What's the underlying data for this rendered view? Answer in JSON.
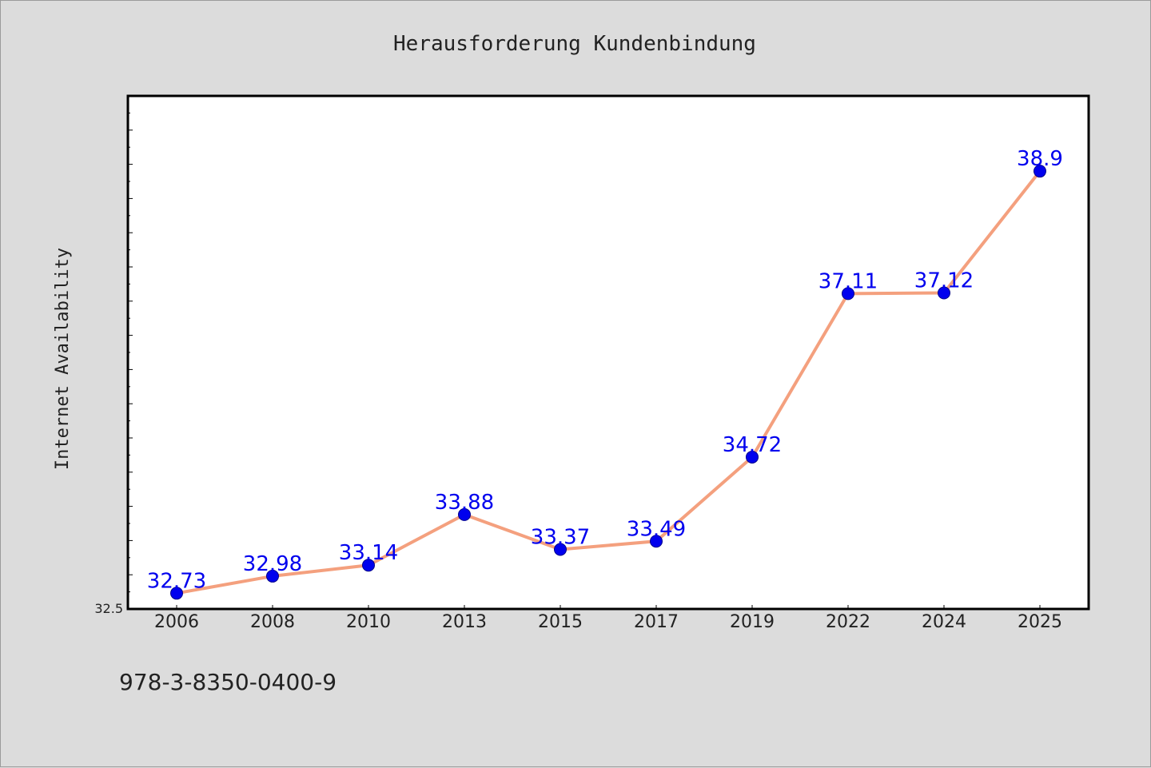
{
  "chart_data": {
    "type": "line",
    "title": "Herausforderung Kundenbindung",
    "ylabel": "Internet Availability",
    "xlabel": "",
    "categories": [
      "2006",
      "2008",
      "2010",
      "2013",
      "2015",
      "2017",
      "2019",
      "2022",
      "2024",
      "2025"
    ],
    "series": [
      {
        "values": [
          32.73,
          32.98,
          33.14,
          33.88,
          33.37,
          33.49,
          34.72,
          37.11,
          37.12,
          38.9
        ],
        "labels": [
          "32.73",
          "32.98",
          "33.14",
          "33.88",
          "33.37",
          "33.49",
          "34.72",
          "37.11",
          "37.12",
          "38.9"
        ]
      }
    ],
    "ytick_label": "32.5",
    "ylim": [
      32.5,
      40.0
    ],
    "grid": false,
    "colors": {
      "line": "#f4a07e",
      "marker": "#0000ee",
      "label": "#0000ee",
      "background": "#dcdcdc",
      "plot_bg": "#ffffff"
    }
  },
  "footer_note": "978-3-8350-0400-9"
}
